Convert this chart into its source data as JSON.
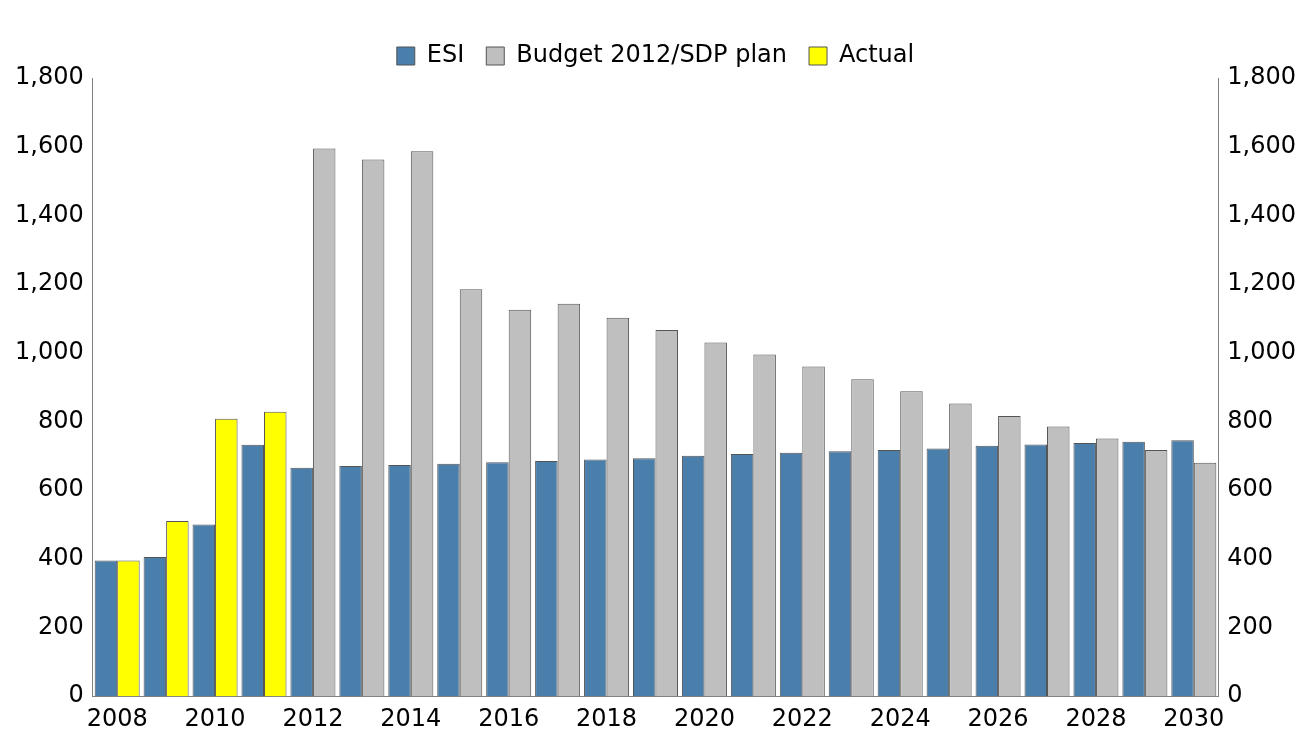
{
  "chart_data": {
    "type": "bar",
    "categories": [
      "2008",
      null,
      "2010",
      null,
      "2012",
      null,
      "2014",
      null,
      "2016",
      null,
      "2018",
      null,
      "2020",
      null,
      "2022",
      null,
      "2024",
      null,
      "2026",
      null,
      "2028",
      null,
      "2030"
    ],
    "series": [
      {
        "name": "ESI",
        "color": "#4a7eab",
        "values": [
          395,
          405,
          500,
          732,
          665,
          670,
          673,
          677,
          681,
          685,
          689,
          693,
          700,
          705,
          709,
          713,
          717,
          721,
          729,
          733,
          737,
          741,
          745
        ]
      },
      {
        "name": "Budget 2012/SDP plan",
        "color": "#bfbfbf",
        "values": [
          null,
          null,
          null,
          null,
          1595,
          1563,
          1587,
          1185,
          1125,
          1143,
          1102,
          1066,
          1030,
          995,
          960,
          923,
          888,
          852,
          816,
          785,
          750,
          717,
          680
        ]
      },
      {
        "name": "Actual",
        "color": "#ffff00",
        "values": [
          395,
          510,
          808,
          828,
          null,
          null,
          null,
          null,
          null,
          null,
          null,
          null,
          null,
          null,
          null,
          null,
          null,
          null,
          null,
          null,
          null,
          null,
          null
        ]
      }
    ],
    "ylim": [
      0,
      1800
    ],
    "yticks": [
      0,
      200,
      400,
      600,
      800,
      {
        "value": 1000,
        "label": "1,000"
      },
      {
        "value": 1200,
        "label": "1,200"
      },
      {
        "value": 1400,
        "label": "1,400"
      },
      {
        "value": 1600,
        "label": "1,600"
      },
      {
        "value": 1800,
        "label": "1,800"
      }
    ],
    "y2lim": [
      0,
      1800
    ],
    "y2ticks": [
      0,
      200,
      400,
      600,
      800,
      {
        "value": 1000,
        "label": "1,000"
      },
      {
        "value": 1200,
        "label": "1,200"
      },
      {
        "value": 1400,
        "label": "1,400"
      },
      {
        "value": 1600,
        "label": "1,600"
      },
      {
        "value": 1800,
        "label": "1,800"
      }
    ],
    "grid": false,
    "legend": "top"
  }
}
